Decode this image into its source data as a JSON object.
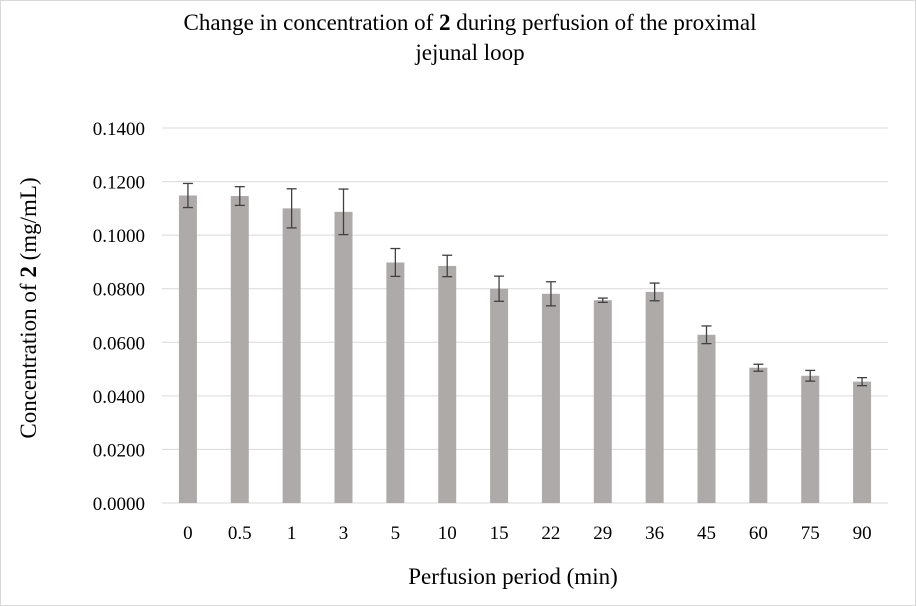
{
  "chart_data": {
    "type": "bar",
    "title": {
      "before": "Change in concentration of ",
      "bold": "2",
      "after": " during perfusion of the proximal",
      "line2": "jejunal loop"
    },
    "xlabel": "Perfusion period (min)",
    "ylabel": {
      "before": "Concentration of ",
      "bold": "2",
      "after": " (mg/mL)"
    },
    "ylim": [
      0,
      0.14
    ],
    "y_ticks": [
      "0.0000",
      "0.0200",
      "0.0400",
      "0.0600",
      "0.0800",
      "0.1000",
      "0.1200",
      "0.1400"
    ],
    "grid": true,
    "categories": [
      "0",
      "0.5",
      "1",
      "3",
      "5",
      "10",
      "15",
      "22",
      "29",
      "36",
      "45",
      "60",
      "75",
      "90"
    ],
    "values": [
      0.1148,
      0.1146,
      0.11,
      0.1087,
      0.0898,
      0.0885,
      0.08,
      0.0781,
      0.0757,
      0.0788,
      0.0628,
      0.0505,
      0.0475,
      0.0453
    ],
    "error": [
      0.0045,
      0.0035,
      0.0073,
      0.0085,
      0.0052,
      0.004,
      0.0047,
      0.0045,
      0.0008,
      0.0033,
      0.0033,
      0.0013,
      0.002,
      0.0015
    ],
    "bar_color": "#aeaaaa",
    "error_color": "#404040",
    "grid_color": "#d9d9d9"
  }
}
